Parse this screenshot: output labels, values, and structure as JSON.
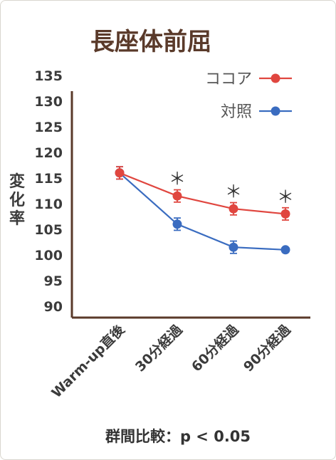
{
  "chart_data": {
    "type": "line",
    "title": "長座体前屈",
    "ylabel": "変化率",
    "xlabel": "",
    "categories": [
      "Warm-up直後",
      "30分経過",
      "60分経過",
      "90分経過"
    ],
    "ylim": [
      90,
      135
    ],
    "yticks": [
      135,
      130,
      125,
      120,
      115,
      110,
      105,
      100,
      95,
      90
    ],
    "series": [
      {
        "name": "ココア",
        "color": "#e0463f",
        "values": [
          116,
          111.5,
          109,
          108
        ],
        "errors": [
          1.2,
          1.2,
          1.2,
          1.2
        ]
      },
      {
        "name": "対照",
        "color": "#3a6cc0",
        "values": [
          116,
          106,
          101.5,
          101
        ],
        "errors": [
          1.2,
          1.2,
          1.2,
          0
        ]
      }
    ],
    "significance_marker": "＊",
    "significant_categories": [
      "30分経過",
      "60分経過",
      "90分経過"
    ],
    "legend_position": "top-right",
    "grid": false,
    "axis_color": "#5a3a2a",
    "note": "群間比較：p < 0.05"
  }
}
